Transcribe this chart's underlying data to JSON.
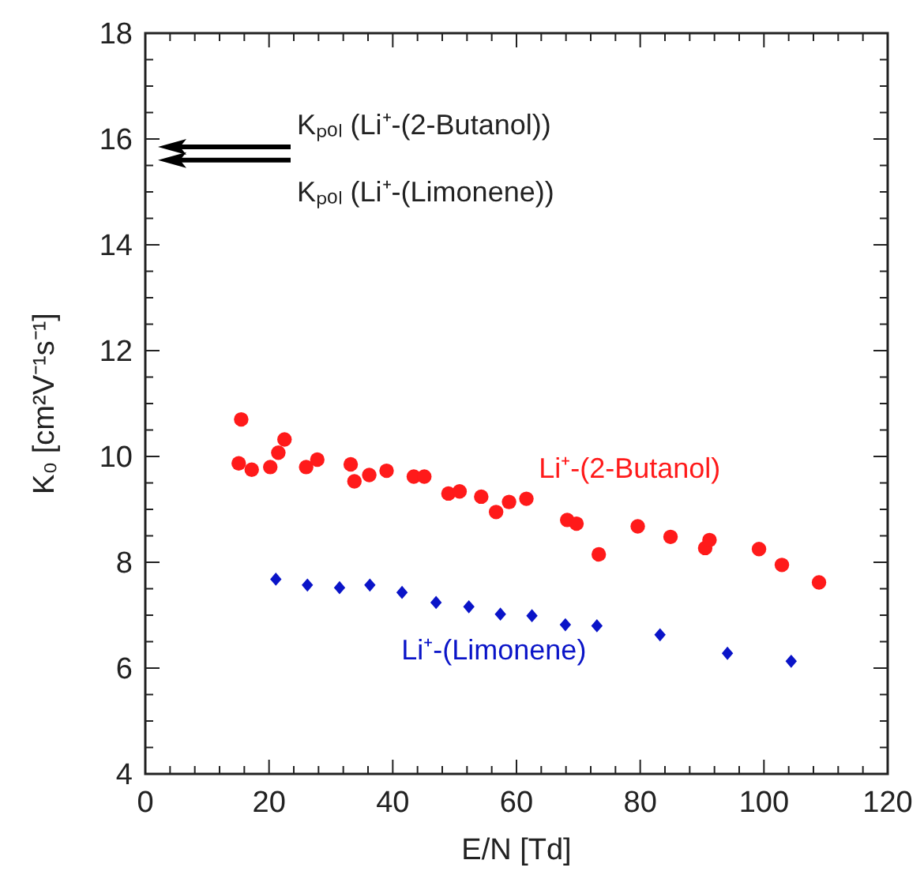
{
  "chart_data": {
    "type": "scatter",
    "xlabel": "E/N [Td]",
    "ylabel": "K₀ [cm²V⁻¹s⁻¹]",
    "xlim": [
      0,
      120
    ],
    "ylim": [
      4,
      18
    ],
    "xticks": [
      0,
      {
        "value": 4,
        "label": null
      },
      {
        "value": 8,
        "label": null
      },
      {
        "value": 12,
        "label": null
      },
      {
        "value": 16,
        "label": null
      },
      20,
      {
        "value": 24,
        "label": null
      },
      {
        "value": 28,
        "label": null
      },
      {
        "value": 32,
        "label": null
      },
      {
        "value": 36,
        "label": null
      },
      40,
      {
        "value": 44,
        "label": null
      },
      {
        "value": 48,
        "label": null
      },
      {
        "value": 52,
        "label": null
      },
      {
        "value": 56,
        "label": null
      },
      60,
      {
        "value": 64,
        "label": null
      },
      {
        "value": 68,
        "label": null
      },
      {
        "value": 72,
        "label": null
      },
      {
        "value": 76,
        "label": null
      },
      80,
      {
        "value": 84,
        "label": null
      },
      {
        "value": 88,
        "label": null
      },
      {
        "value": 92,
        "label": null
      },
      {
        "value": 96,
        "label": null
      },
      100,
      {
        "value": 104,
        "label": null
      },
      {
        "value": 108,
        "label": null
      },
      {
        "value": 112,
        "label": null
      },
      {
        "value": 116,
        "label": null
      },
      120
    ],
    "yticks": [
      4,
      {
        "value": 4.5,
        "label": null
      },
      {
        "value": 5,
        "label": null
      },
      {
        "value": 5.5,
        "label": null
      },
      6,
      {
        "value": 6.5,
        "label": null
      },
      {
        "value": 7,
        "label": null
      },
      {
        "value": 7.5,
        "label": null
      },
      8,
      {
        "value": 8.5,
        "label": null
      },
      {
        "value": 9,
        "label": null
      },
      {
        "value": 9.5,
        "label": null
      },
      10,
      {
        "value": 10.5,
        "label": null
      },
      {
        "value": 11,
        "label": null
      },
      {
        "value": 11.5,
        "label": null
      },
      12,
      {
        "value": 12.5,
        "label": null
      },
      {
        "value": 13,
        "label": null
      },
      {
        "value": 13.5,
        "label": null
      },
      14,
      {
        "value": 14.5,
        "label": null
      },
      {
        "value": 15,
        "label": null
      },
      {
        "value": 15.5,
        "label": null
      },
      16,
      {
        "value": 16.5,
        "label": null
      },
      {
        "value": 17,
        "label": null
      },
      {
        "value": 17.5,
        "label": null
      },
      18
    ],
    "grid": false,
    "series": [
      {
        "name": "Li⁺-(2-Butanol)",
        "color": "#ff1a1a",
        "marker": "circle",
        "x": [
          15.5,
          15.1,
          17.2,
          20.2,
          21.5,
          22.5,
          26.0,
          27.8,
          33.2,
          33.8,
          36.2,
          39.0,
          43.4,
          45.1,
          49.0,
          50.8,
          54.3,
          56.7,
          58.8,
          61.6,
          68.2,
          69.7,
          73.3,
          79.6,
          84.9,
          90.5,
          91.2,
          99.2,
          102.9,
          108.9
        ],
        "values": [
          10.7,
          9.87,
          9.75,
          9.8,
          10.07,
          10.32,
          9.8,
          9.94,
          9.85,
          9.53,
          9.65,
          9.73,
          9.62,
          9.62,
          9.3,
          9.34,
          9.24,
          8.95,
          9.14,
          9.2,
          8.8,
          8.73,
          8.15,
          8.68,
          8.48,
          8.27,
          8.42,
          8.25,
          7.95,
          7.62
        ]
      },
      {
        "name": "Li⁺-(Limonene)",
        "color": "#0a14c8",
        "marker": "diamond",
        "x": [
          21.1,
          26.2,
          31.4,
          36.3,
          41.5,
          47.0,
          52.3,
          57.4,
          62.5,
          67.9,
          73.0,
          83.2,
          94.1,
          104.4
        ],
        "values": [
          7.68,
          7.57,
          7.52,
          7.57,
          7.43,
          7.24,
          7.16,
          7.02,
          6.99,
          6.82,
          6.8,
          6.63,
          6.28,
          6.13
        ]
      }
    ],
    "ref_lines": [
      {
        "axis": "y",
        "value": 15.85,
        "label": "Kₚₒₗ (Li⁺-(2-Butanol))"
      },
      {
        "axis": "y",
        "value": 15.6,
        "label": "Kₚₒₗ (Li⁺-(Limonene))"
      }
    ]
  }
}
